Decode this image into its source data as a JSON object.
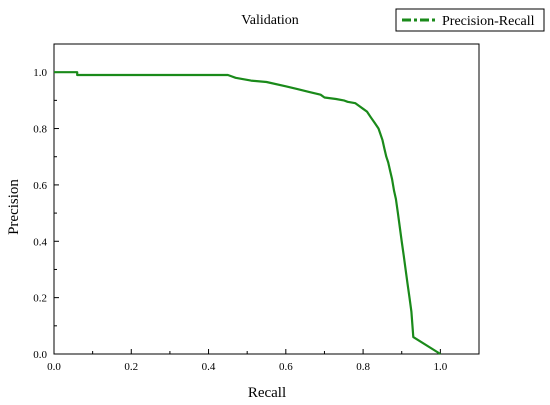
{
  "chart_data": {
    "type": "line",
    "title": "Validation",
    "xlabel": "Recall",
    "ylabel": "Precision",
    "xlim": [
      0.0,
      1.1
    ],
    "ylim": [
      0.0,
      1.1
    ],
    "x_ticks": [
      "0.0",
      "0.2",
      "0.4",
      "0.6",
      "0.8",
      "1.0"
    ],
    "y_ticks": [
      "0.0",
      "0.2",
      "0.4",
      "0.6",
      "0.8",
      "1.0"
    ],
    "x_tick_values": [
      0.0,
      0.2,
      0.4,
      0.6,
      0.8,
      1.0
    ],
    "y_tick_values": [
      0.0,
      0.2,
      0.4,
      0.6,
      0.8,
      1.0
    ],
    "grid": false,
    "legend_position": "top-right",
    "series": [
      {
        "name": "Precision-Recall",
        "color": "#1a8a1a",
        "style": "dash-dot",
        "x": [
          0.0,
          0.06,
          0.06,
          0.45,
          0.46,
          0.47,
          0.49,
          0.51,
          0.55,
          0.6,
          0.63,
          0.66,
          0.69,
          0.7,
          0.73,
          0.75,
          0.76,
          0.78,
          0.79,
          0.8,
          0.81,
          0.82,
          0.83,
          0.84,
          0.85,
          0.855,
          0.86,
          0.865,
          0.87,
          0.875,
          0.88,
          0.885,
          0.89,
          0.895,
          0.9,
          0.905,
          0.91,
          0.915,
          0.92,
          0.925,
          0.93,
          1.0
        ],
        "y": [
          1.0,
          1.0,
          0.99,
          0.99,
          0.985,
          0.98,
          0.975,
          0.97,
          0.965,
          0.95,
          0.94,
          0.93,
          0.92,
          0.91,
          0.905,
          0.9,
          0.895,
          0.89,
          0.88,
          0.87,
          0.86,
          0.84,
          0.82,
          0.8,
          0.76,
          0.73,
          0.7,
          0.68,
          0.65,
          0.62,
          0.58,
          0.55,
          0.5,
          0.45,
          0.4,
          0.35,
          0.3,
          0.25,
          0.2,
          0.15,
          0.06,
          0.0
        ]
      }
    ]
  }
}
